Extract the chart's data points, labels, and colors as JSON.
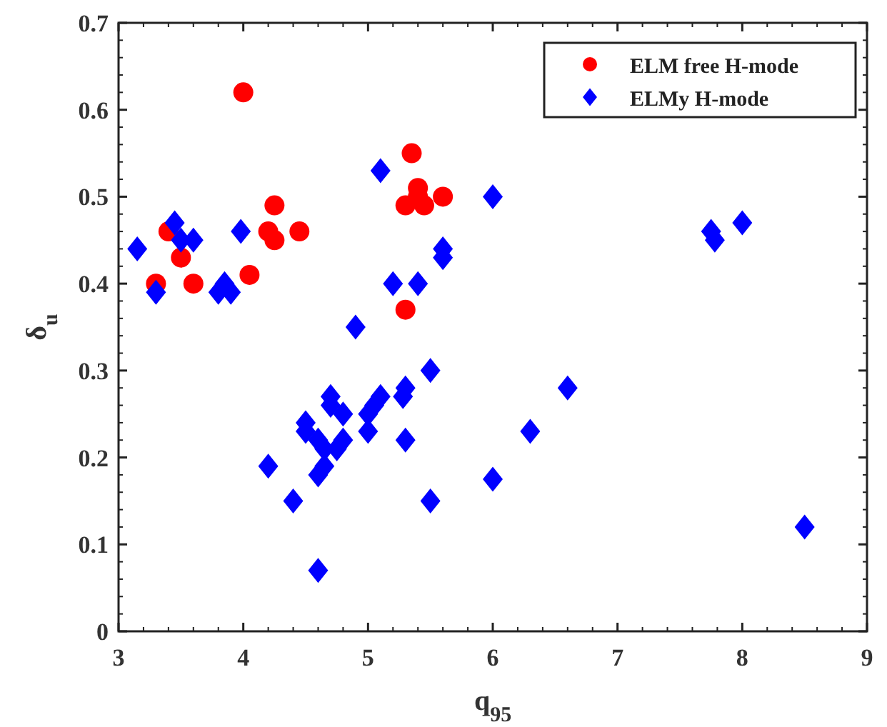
{
  "chart_data": {
    "type": "scatter",
    "xlabel": "q$_{95}$",
    "ylabel": "δ$_{u}$",
    "xlim": [
      3,
      9
    ],
    "ylim": [
      0,
      0.7
    ],
    "xticks": [
      3,
      4,
      5,
      6,
      7,
      8,
      9
    ],
    "yticks": [
      0,
      0.1,
      0.2,
      0.3,
      0.4,
      0.5,
      0.6,
      0.7
    ],
    "grid": false,
    "legend": "top right",
    "series": [
      {
        "name": "ELM free H-mode",
        "color": "#ff0000",
        "marker": "circle",
        "x": [
          3.3,
          3.4,
          3.5,
          3.6,
          4.0,
          4.05,
          4.2,
          4.25,
          4.25,
          4.45,
          5.3,
          5.3,
          5.35,
          5.4,
          5.45,
          5.6,
          5.4
        ],
        "values": [
          0.4,
          0.46,
          0.43,
          0.4,
          0.62,
          0.41,
          0.46,
          0.49,
          0.45,
          0.46,
          0.37,
          0.49,
          0.55,
          0.51,
          0.49,
          0.5,
          0.5
        ]
      },
      {
        "name": "ELMy H-mode",
        "color": "#0000ff",
        "marker": "diamond",
        "x": [
          3.15,
          3.3,
          3.45,
          3.5,
          3.6,
          3.8,
          3.85,
          3.9,
          3.98,
          5.1,
          5.2,
          5.4,
          5.6,
          5.6,
          6.0,
          4.9,
          7.75,
          7.78,
          8.0,
          8.5,
          6.6,
          6.3,
          6.0,
          5.5,
          5.5,
          5.3,
          5.28,
          5.3,
          5.1,
          5.05,
          5.0,
          5.0,
          4.8,
          4.7,
          4.7,
          4.8,
          4.75,
          4.65,
          4.6,
          4.5,
          4.5,
          4.2,
          4.4,
          4.6,
          4.65,
          4.6
        ],
        "values": [
          0.44,
          0.39,
          0.47,
          0.45,
          0.45,
          0.39,
          0.4,
          0.39,
          0.46,
          0.53,
          0.4,
          0.4,
          0.44,
          0.43,
          0.5,
          0.35,
          0.46,
          0.45,
          0.47,
          0.12,
          0.28,
          0.23,
          0.175,
          0.15,
          0.3,
          0.28,
          0.27,
          0.22,
          0.27,
          0.26,
          0.25,
          0.23,
          0.25,
          0.26,
          0.27,
          0.22,
          0.21,
          0.21,
          0.18,
          0.24,
          0.23,
          0.19,
          0.15,
          0.07,
          0.19,
          0.22
        ]
      }
    ]
  }
}
